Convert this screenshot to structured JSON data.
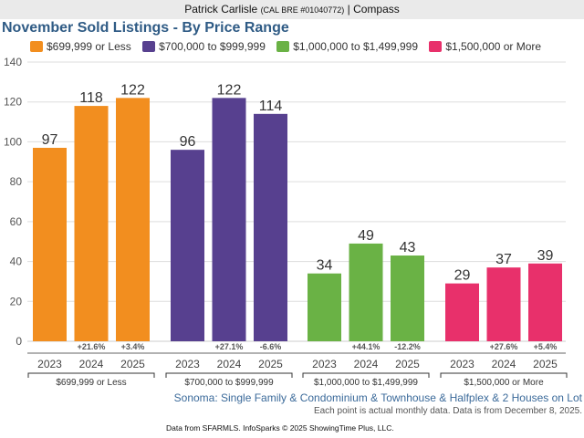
{
  "header": {
    "agent_name": "Patrick Carlisle",
    "license": "(CAL BRE #01040772)",
    "brokerage": "| Compass"
  },
  "footer": {
    "subtitle": "Sonoma: Single Family & Condominium & Townhouse & Halfplex & 2 Houses on Lot",
    "note": "Each point is actual monthly data. Data is from December 8, 2025.",
    "credit": "Data from SFARMLS. InfoSparks © 2025 ShowingTime Plus, LLC."
  },
  "chart_data": {
    "type": "bar",
    "title": "November Sold Listings - By Price Range",
    "xlabel": "",
    "ylabel": "",
    "ylim": [
      0,
      140
    ],
    "yticks": [
      0,
      20,
      40,
      60,
      80,
      100,
      120,
      140
    ],
    "grid": true,
    "legend_position": "top-left",
    "categories": [
      "2023",
      "2024",
      "2025"
    ],
    "series": [
      {
        "name": "$699,999 or Less",
        "color": "#f28e1f",
        "values": [
          97,
          118,
          122
        ],
        "changes": [
          "",
          "+21.6%",
          "+3.4%"
        ]
      },
      {
        "name": "$700,000 to $999,999",
        "color": "#57408f",
        "values": [
          96,
          122,
          114
        ],
        "changes": [
          "",
          "+27.1%",
          "-6.6%"
        ]
      },
      {
        "name": "$1,000,000 to $1,499,999",
        "color": "#6ab245",
        "values": [
          34,
          49,
          43
        ],
        "changes": [
          "",
          "+44.1%",
          "-12.2%"
        ]
      },
      {
        "name": "$1,500,000 or More",
        "color": "#e8306b",
        "values": [
          29,
          37,
          39
        ],
        "changes": [
          "",
          "+27.6%",
          "+5.4%"
        ]
      }
    ]
  }
}
